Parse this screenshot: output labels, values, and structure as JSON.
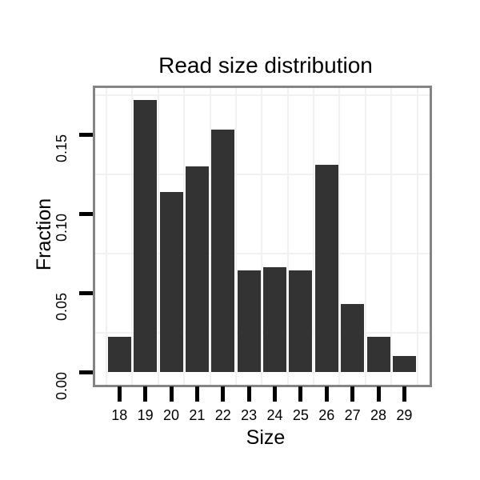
{
  "chart_data": {
    "type": "bar",
    "title": "Read size distribution",
    "xlabel": "Size",
    "ylabel": "Fraction",
    "categories": [
      "18",
      "19",
      "20",
      "21",
      "22",
      "23",
      "24",
      "25",
      "26",
      "27",
      "28",
      "29"
    ],
    "values": [
      0.022,
      0.172,
      0.114,
      0.13,
      0.153,
      0.064,
      0.066,
      0.064,
      0.131,
      0.043,
      0.022,
      0.01
    ],
    "y_tick_values": [
      0.0,
      0.05,
      0.1,
      0.15
    ],
    "y_tick_labels": [
      "0.00",
      "0.05",
      "0.10",
      "0.15"
    ],
    "ylim": [
      0,
      0.18
    ],
    "gridlines_y_minor": [
      0.025,
      0.075,
      0.125,
      0.175
    ],
    "gridlines_x": "category-boundaries",
    "legend": "none",
    "colors": {
      "bar_fill": "#333333",
      "panel_border": "#858585",
      "gridline": "#f1f1f1",
      "tick": "#000000",
      "text": "#000000",
      "background": "#ffffff"
    }
  }
}
